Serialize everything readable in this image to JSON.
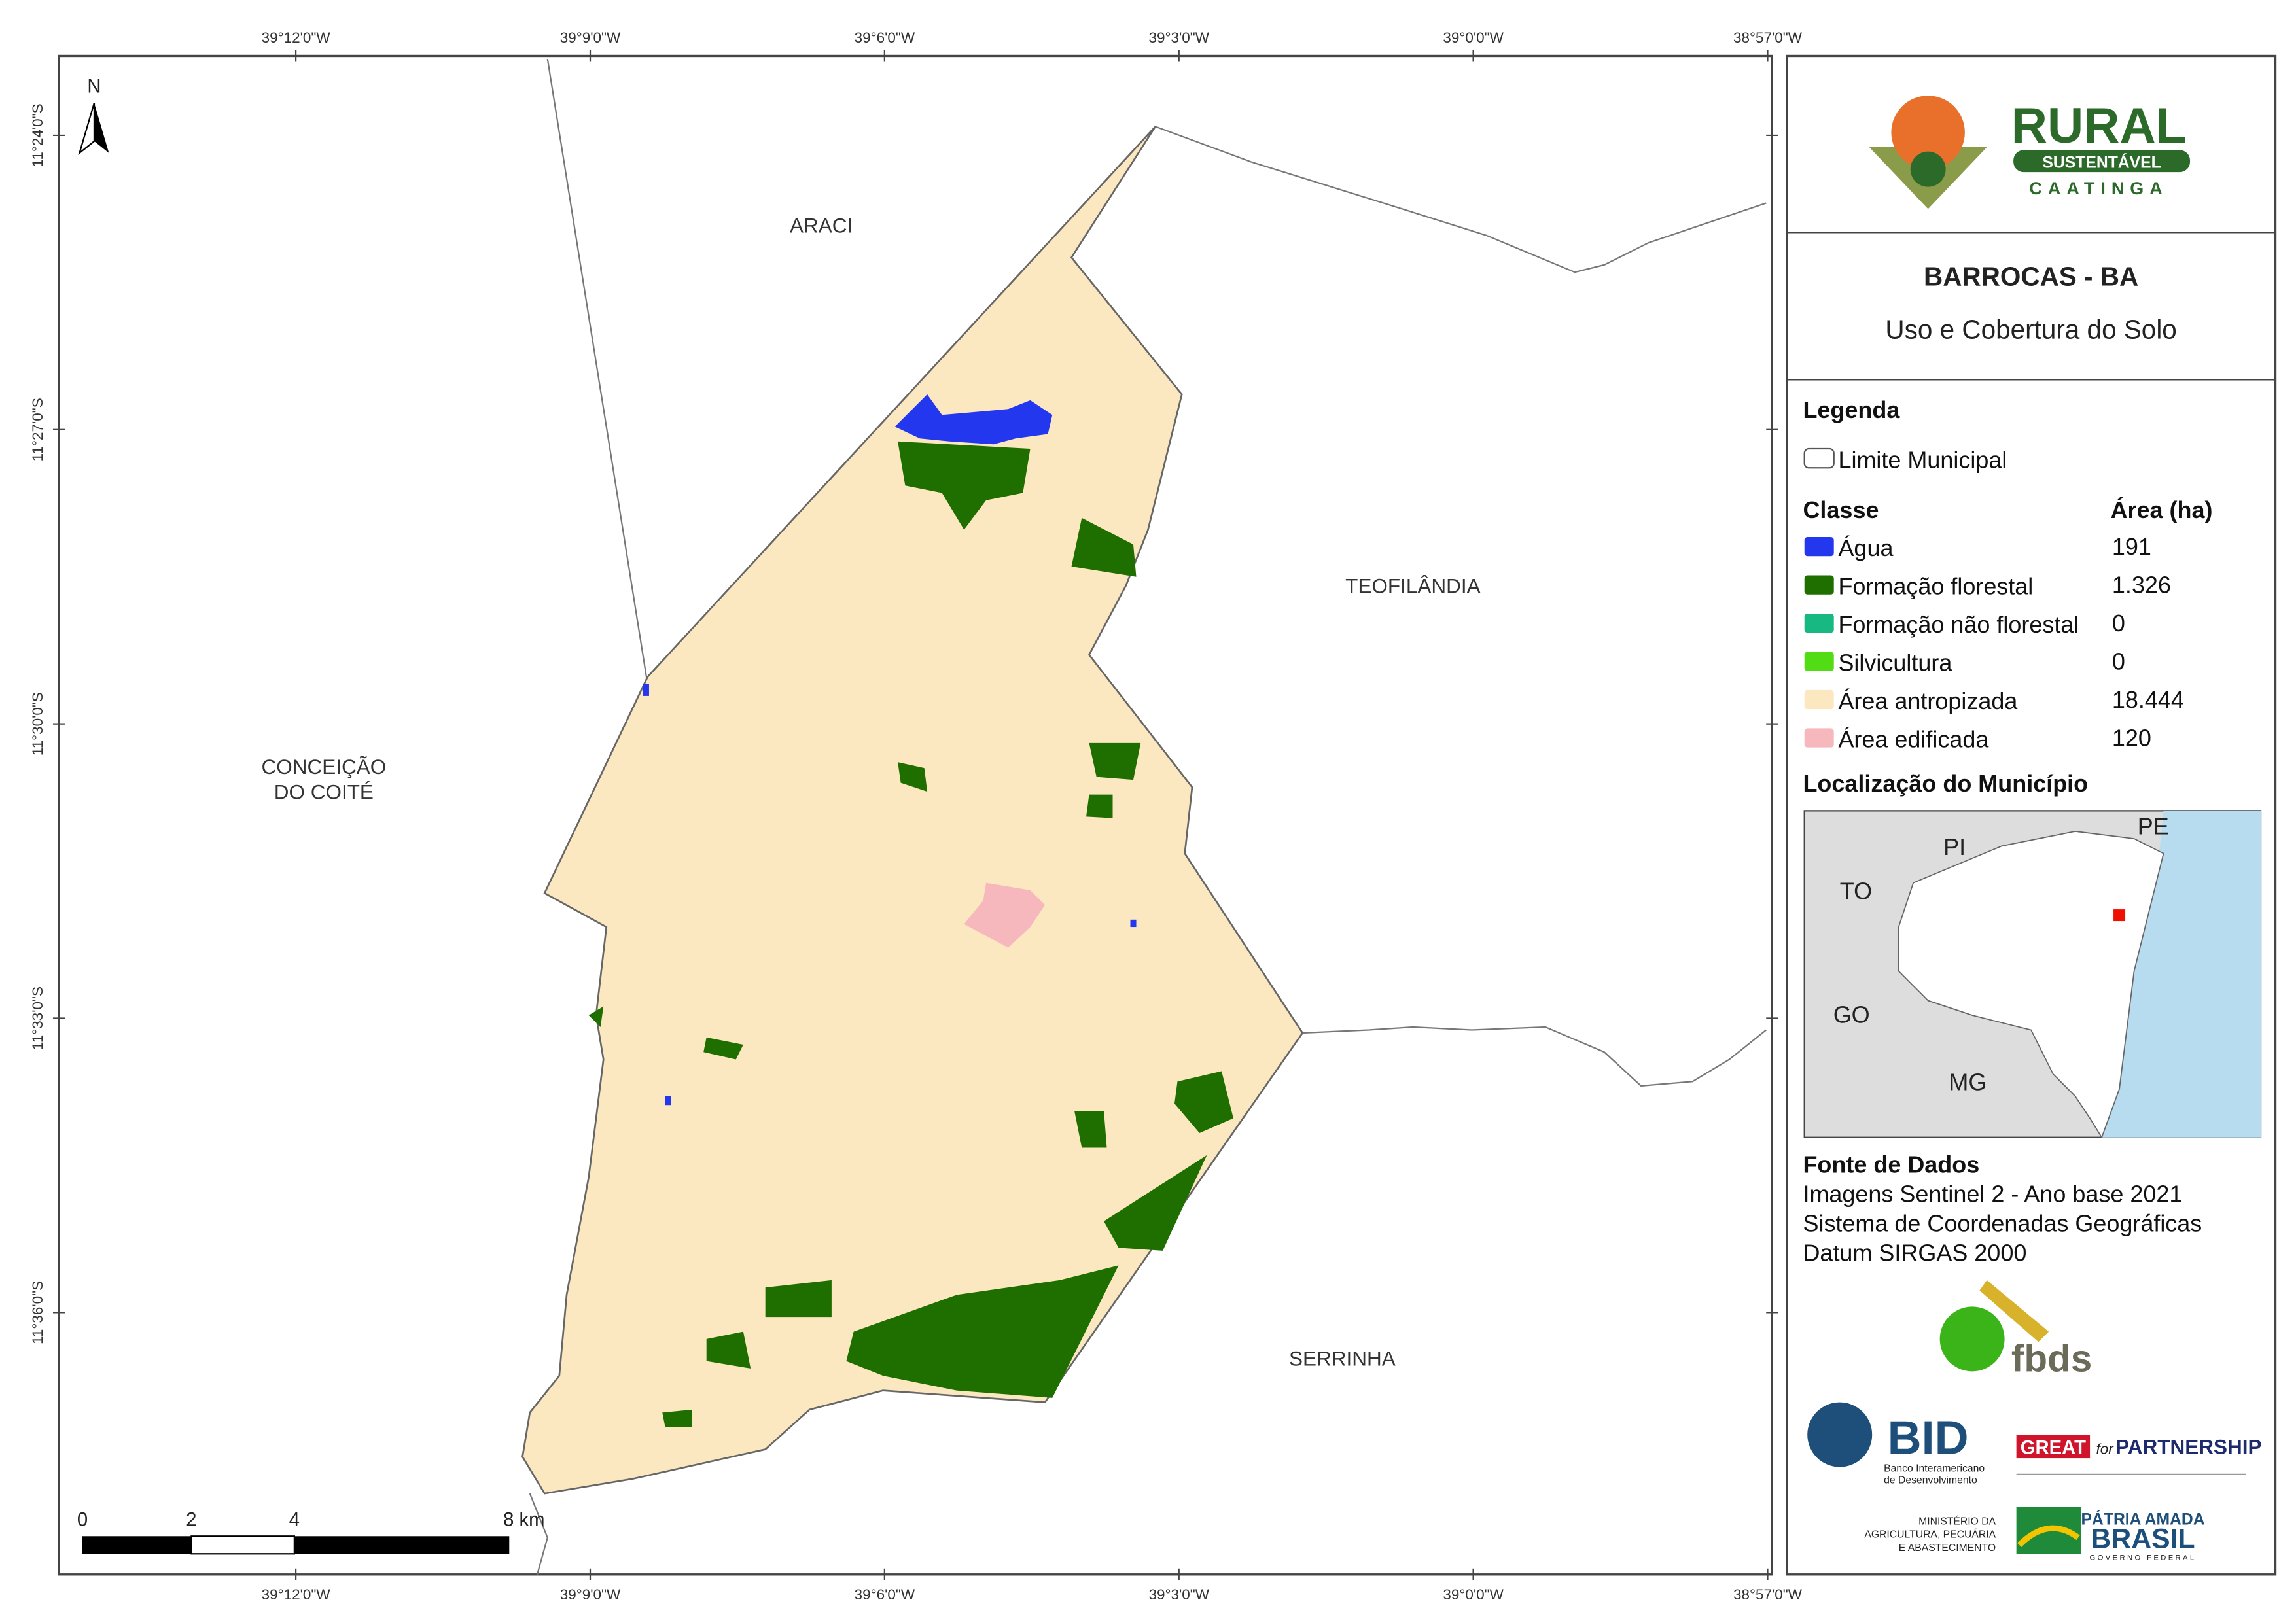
{
  "map": {
    "top_coords": [
      "39°12'0\"W",
      "39°9'0\"W",
      "39°6'0\"W",
      "39°3'0\"W",
      "39°0'0\"W",
      "38°57'0\"W"
    ],
    "left_coords": [
      "11°24'0\"S",
      "11°27'0\"S",
      "11°30'0\"S",
      "11°33'0\"S",
      "11°36'0\"S"
    ],
    "north": "N",
    "places": [
      "ARACI",
      "TEOFILÂNDIA",
      "CONCEIÇÃO",
      "DO COITÉ",
      "SERRINHA"
    ],
    "scale": [
      "0",
      "2",
      "4",
      "8 km"
    ]
  },
  "panel": {
    "logo": {
      "main": "RURAL",
      "sub": "SUSTENTÁVEL",
      "region": "CAATINGA"
    },
    "title": "BARROCAS - BA",
    "subtitle": "Uso e Cobertura do Solo",
    "legend_title": "Legenda",
    "boundary": "Limite Municipal",
    "class_header": "Classe",
    "area_header": "Área (ha)",
    "classes": [
      {
        "name": "Água",
        "area": "191",
        "color": "#2337ef"
      },
      {
        "name": "Formação florestal",
        "area": "1.326",
        "color": "#1f6e00"
      },
      {
        "name": "Formação não florestal",
        "area": "0",
        "color": "#18b882"
      },
      {
        "name": "Silvicultura",
        "area": "0",
        "color": "#52dc14"
      },
      {
        "name": "Área antropizada",
        "area": "18.444",
        "color": "#fbe8c0"
      },
      {
        "name": "Área edificada",
        "area": "120",
        "color": "#f7b8bd"
      }
    ],
    "location_title": "Localização do Município",
    "states": [
      "PI",
      "PE",
      "TO",
      "GO",
      "MG"
    ],
    "source_title": "Fonte de Dados",
    "sources": [
      "Imagens Sentinel 2 - Ano base 2021",
      "Sistema de Coordenadas Geográficas",
      "Datum SIRGAS 2000"
    ],
    "partners": {
      "fbds": "fbds",
      "bid": "BID",
      "bid_sub": [
        "Banco Interamericano",
        "de Desenvolvimento"
      ],
      "great": "GREAT",
      "great_for": "for",
      "great_partner": "PARTNERSHIP",
      "ministry": [
        "MINISTÉRIO DA",
        "AGRICULTURA, PECUÁRIA",
        "E ABASTECIMENTO"
      ],
      "patria": "PÁTRIA AMADA",
      "brasil": "BRASIL",
      "gov": "GOVERNO FEDERAL"
    }
  }
}
